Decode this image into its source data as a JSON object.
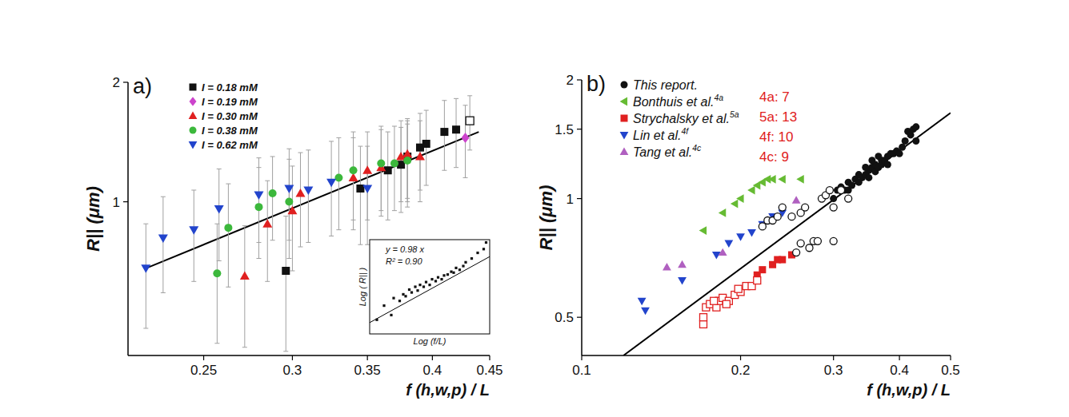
{
  "chart_data": [
    {
      "type": "scatter",
      "panel_label": "a)",
      "log": true,
      "x_label": "f (h,w,p) / L",
      "y_label": "R|| (μm)",
      "xlim": [
        0.214,
        0.45
      ],
      "ylim": [
        0.41,
        2
      ],
      "xticks": [
        0.25,
        0.3,
        0.35,
        0.4,
        0.45
      ],
      "yticks": [
        1,
        2
      ],
      "legend": "top-left",
      "series": [
        {
          "name": "I = 0.18 mM",
          "color": "#111111",
          "marker": "square",
          "x": [
            0.296,
            0.345,
            0.365,
            0.375,
            0.38,
            0.39,
            0.395,
            0.41,
            0.42
          ],
          "values": [
            0.67,
            1.08,
            1.2,
            1.24,
            1.3,
            1.37,
            1.4,
            1.5,
            1.52
          ],
          "errors": [
            0.25,
            0.3,
            0.3,
            0.3,
            0.3,
            0.3,
            0.3,
            0.3,
            0.3
          ]
        },
        {
          "name": "I = 0.19 mM",
          "color": "#cc44cc",
          "marker": "diamond",
          "x": [
            0.428
          ],
          "values": [
            1.45
          ],
          "errors": [
            0.3
          ]
        },
        {
          "name": "I = 0.30 mM",
          "color": "#e02020",
          "marker": "triangle-up",
          "x": [
            0.272,
            0.285,
            0.3,
            0.305,
            0.34,
            0.35,
            0.36,
            0.375,
            0.38,
            0.39
          ],
          "values": [
            0.65,
            0.88,
            0.95,
            1.05,
            1.15,
            1.2,
            1.22,
            1.3,
            1.32,
            1.3
          ],
          "errors": [
            0.22,
            0.25,
            0.28,
            0.28,
            0.3,
            0.3,
            0.3,
            0.3,
            0.3,
            0.3
          ]
        },
        {
          "name": "I = 0.38 mM",
          "color": "#3cb83c",
          "marker": "circle",
          "x": [
            0.257,
            0.263,
            0.28,
            0.288,
            0.298,
            0.33,
            0.34,
            0.36,
            0.37,
            0.38
          ],
          "values": [
            0.66,
            0.86,
            0.97,
            1.05,
            1.0,
            1.15,
            1.2,
            1.25,
            1.25,
            1.27
          ],
          "errors": [
            0.22,
            0.25,
            0.25,
            0.25,
            0.28,
            0.3,
            0.3,
            0.3,
            0.3,
            0.3
          ]
        },
        {
          "name": "I = 0.62 mM",
          "color": "#2244cc",
          "marker": "triangle-down",
          "x": [
            0.222,
            0.23,
            0.245,
            0.258,
            0.28,
            0.298,
            0.31,
            0.325,
            0.35
          ],
          "values": [
            0.68,
            0.81,
            0.85,
            0.96,
            1.04,
            1.08,
            1.07,
            1.12,
            1.08
          ],
          "errors": [
            0.2,
            0.22,
            0.22,
            0.25,
            0.25,
            0.28,
            0.28,
            0.3,
            0.3
          ]
        },
        {
          "name": null,
          "color": "#111111",
          "marker": "open-square",
          "x": [
            0.432
          ],
          "values": [
            1.6
          ],
          "errors": [
            0.25
          ]
        }
      ],
      "fit": {
        "x": [
          0.222,
          0.44
        ],
        "values": [
          0.68,
          1.5
        ]
      },
      "inset": {
        "x_label": "Log (f/L)",
        "y_label": "Log ( R|| )",
        "annotations": [
          "y = 0.98 x",
          "R² = 0.90"
        ],
        "xlim": [
          0,
          1
        ],
        "ylim": [
          0,
          1
        ],
        "tick_labels": false,
        "x": [
          0.06,
          0.12,
          0.18,
          0.2,
          0.25,
          0.28,
          0.3,
          0.33,
          0.35,
          0.38,
          0.4,
          0.42,
          0.45,
          0.47,
          0.5,
          0.52,
          0.55,
          0.57,
          0.6,
          0.62,
          0.65,
          0.68,
          0.7,
          0.72,
          0.75,
          0.78,
          0.8,
          0.85,
          0.9,
          0.95,
          0.97
        ],
        "values": [
          0.15,
          0.3,
          0.2,
          0.38,
          0.35,
          0.42,
          0.4,
          0.47,
          0.44,
          0.5,
          0.46,
          0.52,
          0.5,
          0.55,
          0.52,
          0.58,
          0.56,
          0.6,
          0.58,
          0.62,
          0.63,
          0.66,
          0.65,
          0.7,
          0.68,
          0.72,
          0.76,
          0.8,
          0.86,
          0.9,
          0.97
        ],
        "fit": {
          "x": [
            0,
            1
          ],
          "values": [
            0.12,
            0.82
          ]
        }
      }
    },
    {
      "type": "scatter",
      "panel_label": "b)",
      "log": true,
      "x_label": "f (h,w,p) / L",
      "y_label": "R|| (μm)",
      "xlim": [
        0.1,
        0.5
      ],
      "ylim": [
        0.4,
        2
      ],
      "xticks": [
        0.1,
        0.2,
        0.3,
        0.4,
        0.5
      ],
      "yticks": [
        0.5,
        1,
        1.5,
        2
      ],
      "legend": "top-left",
      "annotations": [
        "4a: 7",
        "5a: 13",
        "4f: 10",
        "4c: 9"
      ],
      "series": [
        {
          "name": "This report.",
          "color": "#111111",
          "marker": "circle",
          "x": [
            0.3,
            0.305,
            0.31,
            0.315,
            0.32,
            0.32,
            0.325,
            0.33,
            0.335,
            0.335,
            0.34,
            0.345,
            0.35,
            0.35,
            0.355,
            0.36,
            0.36,
            0.365,
            0.37,
            0.37,
            0.375,
            0.38,
            0.38,
            0.385,
            0.39,
            0.395,
            0.4,
            0.405,
            0.41,
            0.415,
            0.42,
            0.425,
            0.43,
            0.43,
            0.345,
            0.355,
            0.365
          ],
          "values": [
            1.0,
            1.05,
            1.07,
            1.05,
            1.1,
            1.05,
            1.08,
            1.12,
            1.1,
            1.15,
            1.13,
            1.15,
            1.18,
            1.13,
            1.2,
            1.17,
            1.22,
            1.2,
            1.22,
            1.25,
            1.25,
            1.28,
            1.22,
            1.3,
            1.3,
            1.32,
            1.3,
            1.35,
            1.4,
            1.48,
            1.45,
            1.5,
            1.52,
            1.4,
            1.2,
            1.25,
            1.28
          ]
        },
        {
          "name": "Bonthuis et al.",
          "ref": "4a",
          "color": "#66bb33",
          "marker": "triangle-left",
          "x": [
            0.17,
            0.185,
            0.195,
            0.2,
            0.21,
            0.215,
            0.22,
            0.225,
            0.23,
            0.24,
            0.26
          ],
          "values": [
            0.83,
            0.92,
            0.97,
            1.0,
            1.05,
            1.08,
            1.1,
            1.12,
            1.12,
            1.12,
            1.12
          ]
        },
        {
          "name": "Strychalsky et al.",
          "ref": "5a",
          "color": "#e02020",
          "marker": "square",
          "x": [
            0.215,
            0.22,
            0.23,
            0.235,
            0.24,
            0.25
          ],
          "values": [
            0.64,
            0.66,
            0.68,
            0.7,
            0.7,
            0.72
          ]
        },
        {
          "name": "Lin et al.",
          "ref": "4f",
          "color": "#2244cc",
          "marker": "triangle-down",
          "x": [
            0.13,
            0.132,
            0.155,
            0.18,
            0.19,
            0.2,
            0.21,
            0.22,
            0.23,
            0.24
          ],
          "values": [
            0.55,
            0.52,
            0.62,
            0.72,
            0.77,
            0.8,
            0.82,
            0.86,
            0.9,
            0.92
          ]
        },
        {
          "name": "Tang et al.",
          "ref": "4c",
          "color": "#b060c0",
          "marker": "triangle-up",
          "x": [
            0.145,
            0.155,
            0.185,
            0.225,
            0.255
          ],
          "values": [
            0.67,
            0.68,
            0.73,
            0.88,
            0.99
          ]
        },
        {
          "name": null,
          "color": "#111111",
          "marker": "open-circle",
          "x": [
            0.22,
            0.225,
            0.23,
            0.235,
            0.24,
            0.25,
            0.26,
            0.265,
            0.27,
            0.275,
            0.28,
            0.3,
            0.285,
            0.29,
            0.295,
            0.3,
            0.31,
            0.32,
            0.26,
            0.255
          ],
          "values": [
            0.85,
            0.88,
            0.88,
            0.9,
            0.95,
            0.9,
            0.92,
            0.95,
            0.75,
            0.78,
            0.78,
            0.78,
            1.0,
            1.02,
            1.05,
            0.95,
            1.05,
            1.0,
            0.77,
            0.73
          ]
        },
        {
          "name": null,
          "color": "#e02020",
          "marker": "open-square",
          "x": [
            0.17,
            0.17,
            0.172,
            0.175,
            0.18,
            0.182,
            0.185,
            0.19,
            0.195,
            0.2,
            0.205,
            0.21,
            0.215,
            0.178,
            0.188,
            0.198
          ],
          "values": [
            0.48,
            0.5,
            0.53,
            0.54,
            0.53,
            0.55,
            0.56,
            0.55,
            0.57,
            0.58,
            0.6,
            0.6,
            0.62,
            0.55,
            0.54,
            0.59
          ]
        }
      ],
      "fit": {
        "x": [
          0.12,
          0.5
        ],
        "values": [
          0.4,
          1.65
        ]
      }
    }
  ]
}
